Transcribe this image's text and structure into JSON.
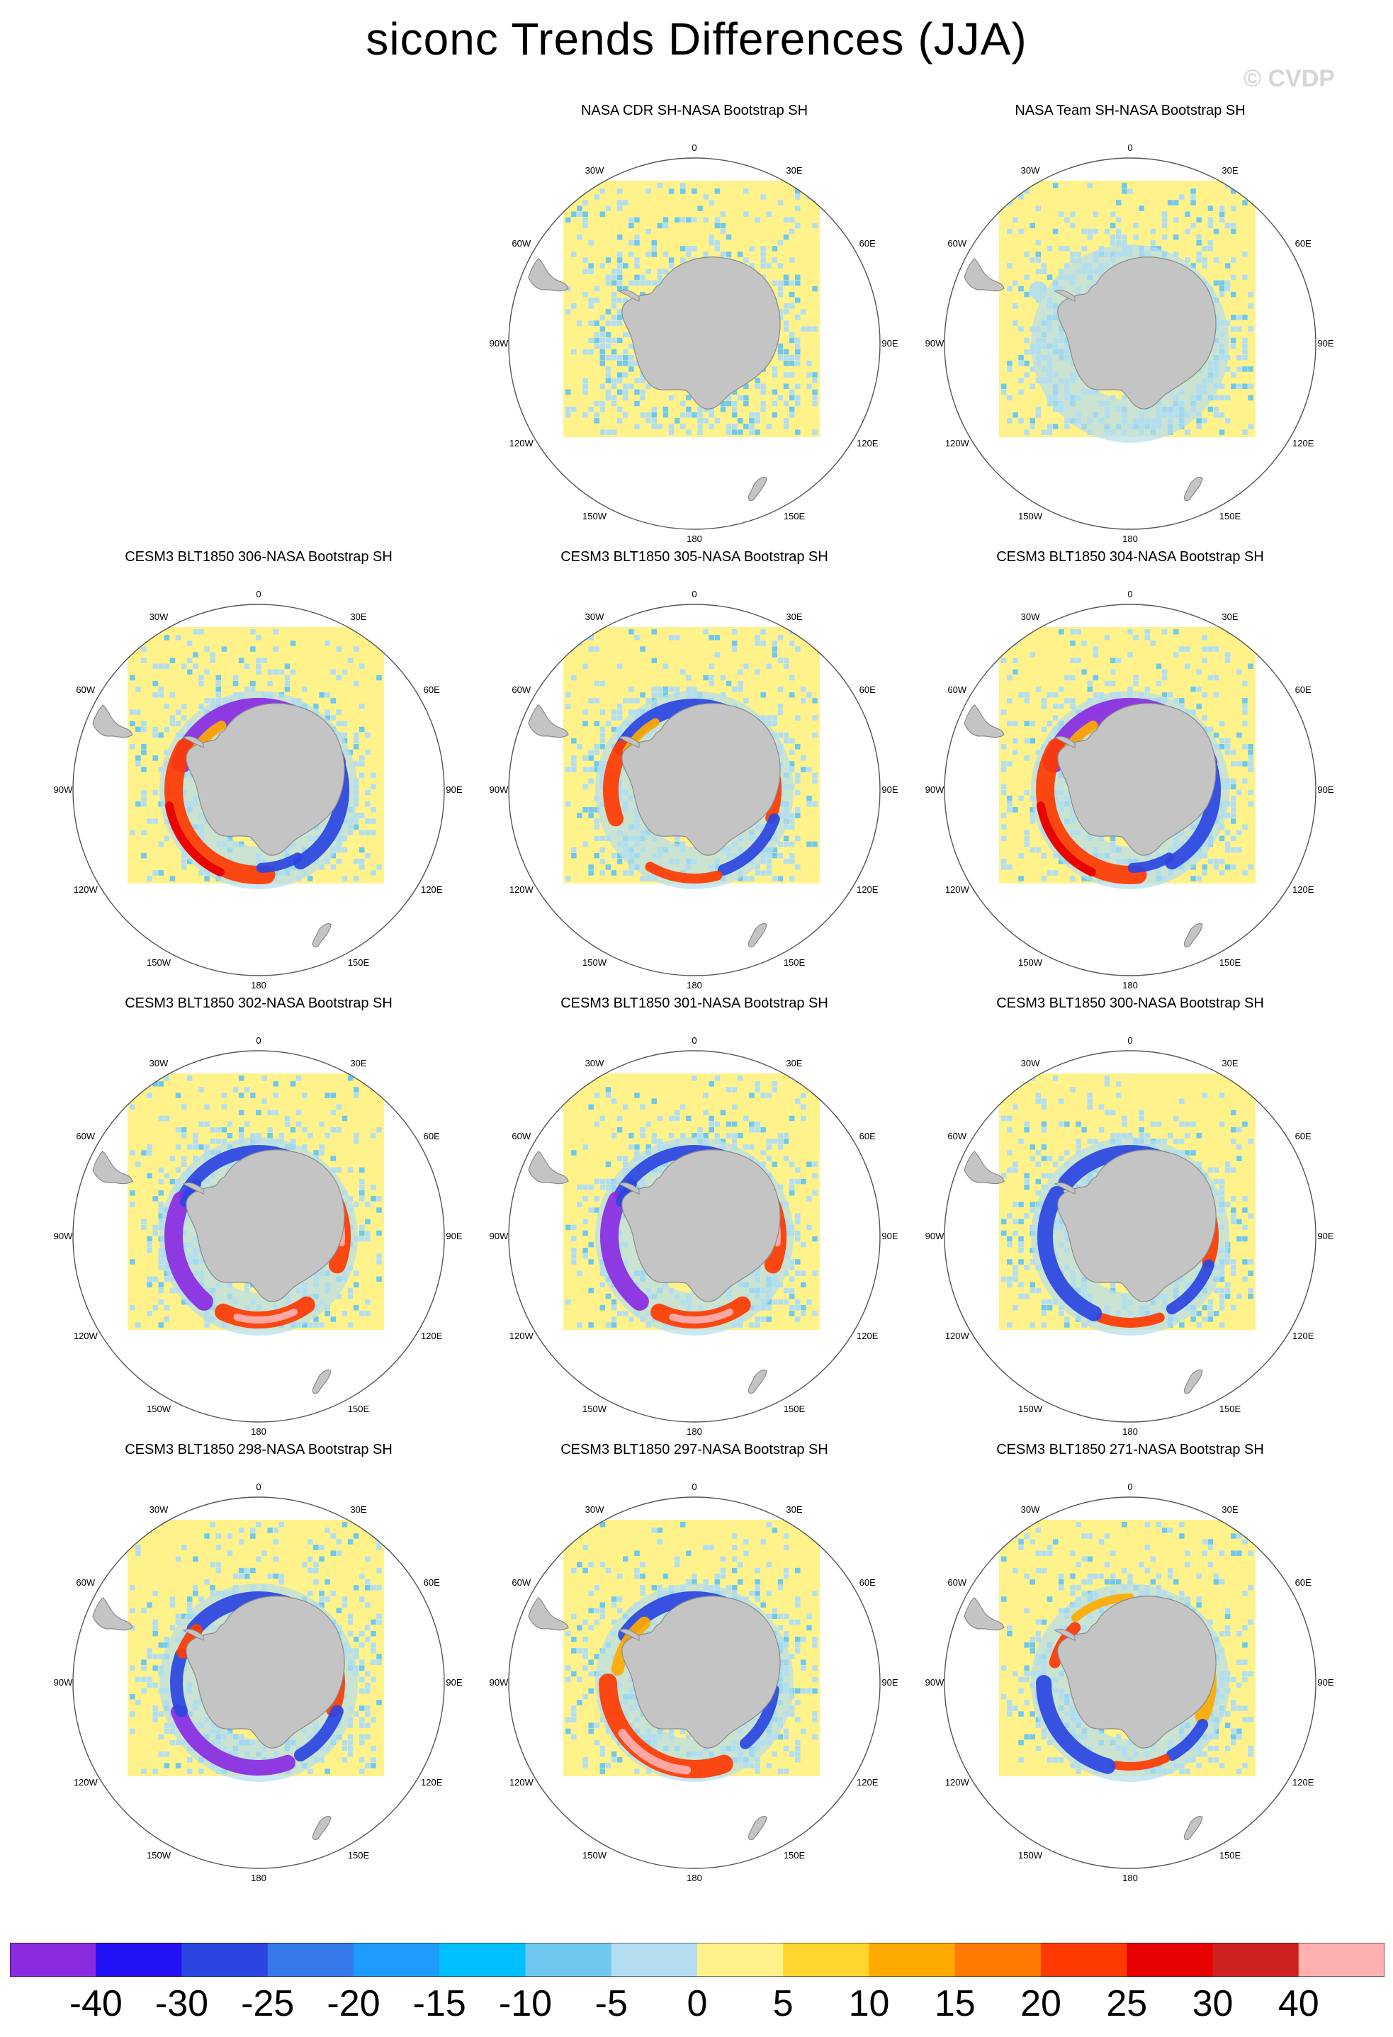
{
  "figure": {
    "title": "siconc Trends Differences (JJA)",
    "watermark": "© CVDP"
  },
  "map_labels": {
    "lon_labels": [
      "0",
      "30E",
      "60E",
      "90E",
      "120E",
      "150E",
      "180",
      "150W",
      "120W",
      "90W",
      "60W",
      "30W"
    ]
  },
  "panels": [
    {
      "title": "NASA CDR SH-NASA Bootstrap SH",
      "pattern": "noise"
    },
    {
      "title": "NASA Team SH-NASA Bootstrap SH",
      "pattern": "noise-ring"
    },
    {
      "title": "CESM3 BLT1850 306-NASA Bootstrap SH",
      "pattern": "strong-west-pos"
    },
    {
      "title": "CESM3 BLT1850 305-NASA Bootstrap SH",
      "pattern": "mixed-ring"
    },
    {
      "title": "CESM3 BLT1850 304-NASA Bootstrap SH",
      "pattern": "strong-west-pos"
    },
    {
      "title": "CESM3 BLT1850 302-NASA Bootstrap SH",
      "pattern": "neg-west-pos-south"
    },
    {
      "title": "CESM3 BLT1850 301-NASA Bootstrap SH",
      "pattern": "neg-west-pos-south"
    },
    {
      "title": "CESM3 BLT1850 300-NASA Bootstrap SH",
      "pattern": "neg-west-pos-east"
    },
    {
      "title": "CESM3 BLT1850 298-NASA Bootstrap SH",
      "pattern": "neg-southwest"
    },
    {
      "title": "CESM3 BLT1850 297-NASA Bootstrap SH",
      "pattern": "pos-southwest"
    },
    {
      "title": "CESM3 BLT1850 271-NASA Bootstrap SH",
      "pattern": "neg-west-mixed"
    }
  ],
  "colorbar": {
    "labels": [
      "-40",
      "-30",
      "-25",
      "-20",
      "-15",
      "-10",
      "-5",
      "0",
      "5",
      "10",
      "15",
      "20",
      "25",
      "30",
      "40"
    ],
    "colors": [
      "#8a2be2",
      "#2212f5",
      "#2b45e0",
      "#3579ea",
      "#1e9bff",
      "#00c0ff",
      "#6ec8f0",
      "#b3def0",
      "#fff28a",
      "#ffd52e",
      "#ffaa00",
      "#ff7a00",
      "#ff3a00",
      "#e60000",
      "#cc2222",
      "#ffb0b0"
    ]
  }
}
